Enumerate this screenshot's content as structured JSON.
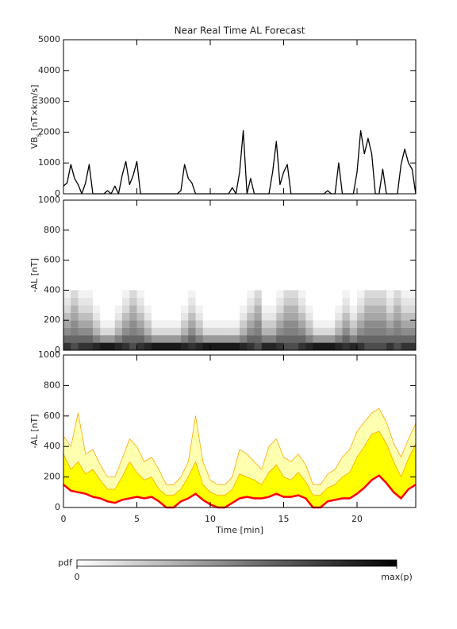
{
  "chart_data": [
    {
      "type": "line",
      "title": "Near Real Time AL Forecast",
      "ylabel": [
        "VB",
        "s",
        " [nT×km/s]"
      ],
      "xlim": [
        0,
        24
      ],
      "xticks": [
        0,
        5,
        10,
        15,
        20
      ],
      "xtick_labels": false,
      "ylim": [
        0,
        5000
      ],
      "yticks": [
        0,
        1000,
        2000,
        3000,
        4000,
        5000
      ],
      "x": [
        0,
        0.25,
        0.5,
        0.75,
        1,
        1.25,
        1.5,
        1.75,
        2,
        2.25,
        2.5,
        2.75,
        3,
        3.25,
        3.5,
        3.75,
        4,
        4.25,
        4.5,
        4.75,
        5,
        5.25,
        5.5,
        5.75,
        6,
        6.25,
        6.5,
        6.75,
        7,
        7.25,
        7.5,
        7.75,
        8,
        8.25,
        8.5,
        8.75,
        9,
        9.25,
        9.5,
        9.75,
        10,
        10.25,
        10.5,
        10.75,
        11,
        11.25,
        11.5,
        11.75,
        12,
        12.25,
        12.5,
        12.75,
        13,
        13.25,
        13.5,
        13.75,
        14,
        14.25,
        14.5,
        14.75,
        15,
        15.25,
        15.5,
        15.75,
        16,
        16.25,
        16.5,
        16.75,
        17,
        17.25,
        17.5,
        17.75,
        18,
        18.25,
        18.5,
        18.75,
        19,
        19.25,
        19.5,
        19.75,
        20,
        20.25,
        20.5,
        20.75,
        21,
        21.25,
        21.5,
        21.75,
        22,
        22.25,
        22.5,
        22.75,
        23,
        23.25,
        23.5,
        23.75,
        24
      ],
      "series": [
        {
          "color": "#000000",
          "values": [
            250,
            350,
            950,
            500,
            300,
            0,
            350,
            950,
            0,
            0,
            0,
            0,
            100,
            0,
            250,
            0,
            600,
            1050,
            300,
            600,
            1050,
            0,
            0,
            0,
            0,
            0,
            0,
            0,
            0,
            0,
            0,
            0,
            100,
            950,
            500,
            350,
            0,
            0,
            0,
            0,
            0,
            0,
            0,
            0,
            0,
            0,
            200,
            0,
            700,
            2050,
            0,
            500,
            0,
            0,
            0,
            0,
            0,
            700,
            1700,
            300,
            700,
            950,
            0,
            0,
            0,
            0,
            0,
            0,
            0,
            0,
            0,
            0,
            100,
            0,
            0,
            1000,
            0,
            0,
            0,
            0,
            700,
            2050,
            1300,
            1800,
            1300,
            0,
            0,
            800,
            0,
            0,
            0,
            0,
            950,
            1450,
            1000,
            800,
            0
          ]
        }
      ]
    },
    {
      "type": "heatmap",
      "ylabel": "-AL [nT]",
      "xlim": [
        0,
        24
      ],
      "xticks": [
        0,
        5,
        10,
        15,
        20
      ],
      "xtick_labels": false,
      "ylim": [
        0,
        1000
      ],
      "yticks": [
        0,
        200,
        400,
        600,
        800,
        1000
      ],
      "x_bins": [
        0,
        0.5,
        1,
        1.5,
        2,
        2.5,
        3,
        3.5,
        4,
        4.5,
        5,
        5.5,
        6,
        6.5,
        7,
        7.5,
        8,
        8.5,
        9,
        9.5,
        10,
        10.5,
        11,
        11.5,
        12,
        12.5,
        13,
        13.5,
        14,
        14.5,
        15,
        15.5,
        16,
        16.5,
        17,
        17.5,
        18,
        18.5,
        19,
        19.5,
        20,
        20.5,
        21,
        21.5,
        22,
        22.5,
        23,
        23.5,
        24
      ],
      "y_bins": [
        0,
        50,
        100,
        150,
        200,
        250,
        300,
        350,
        400
      ],
      "z": [
        [
          0.8,
          0.7,
          0.8,
          0.8,
          0.85,
          0.9,
          0.9,
          0.85,
          0.8,
          0.7,
          0.8,
          0.85,
          0.9,
          0.9,
          0.9,
          0.9,
          0.85,
          0.8,
          0.85,
          0.9,
          0.9,
          0.9,
          0.9,
          0.9,
          0.85,
          0.8,
          0.7,
          0.85,
          0.85,
          0.8,
          0.7,
          0.7,
          0.8,
          0.85,
          0.9,
          0.9,
          0.9,
          0.85,
          0.8,
          0.85,
          0.8,
          0.7,
          0.7,
          0.7,
          0.8,
          0.7,
          0.8,
          0.8
        ],
        [
          0.6,
          0.6,
          0.6,
          0.6,
          0.5,
          0.4,
          0.4,
          0.5,
          0.6,
          0.6,
          0.6,
          0.5,
          0.4,
          0.4,
          0.4,
          0.4,
          0.5,
          0.6,
          0.5,
          0.4,
          0.4,
          0.4,
          0.4,
          0.4,
          0.5,
          0.6,
          0.6,
          0.5,
          0.5,
          0.6,
          0.6,
          0.6,
          0.6,
          0.5,
          0.4,
          0.4,
          0.4,
          0.5,
          0.6,
          0.5,
          0.6,
          0.6,
          0.6,
          0.6,
          0.6,
          0.6,
          0.6,
          0.6
        ],
        [
          0.45,
          0.5,
          0.45,
          0.45,
          0.3,
          0.15,
          0.15,
          0.3,
          0.45,
          0.5,
          0.45,
          0.3,
          0.15,
          0.15,
          0.15,
          0.15,
          0.3,
          0.45,
          0.3,
          0.15,
          0.15,
          0.15,
          0.15,
          0.15,
          0.3,
          0.45,
          0.5,
          0.3,
          0.3,
          0.45,
          0.5,
          0.5,
          0.45,
          0.3,
          0.15,
          0.15,
          0.15,
          0.3,
          0.45,
          0.3,
          0.45,
          0.5,
          0.5,
          0.5,
          0.45,
          0.5,
          0.45,
          0.45
        ],
        [
          0.35,
          0.45,
          0.35,
          0.35,
          0.2,
          0.05,
          0.05,
          0.2,
          0.35,
          0.45,
          0.35,
          0.2,
          0.05,
          0.05,
          0.05,
          0.05,
          0.2,
          0.35,
          0.2,
          0.05,
          0.05,
          0.05,
          0.05,
          0.05,
          0.2,
          0.35,
          0.45,
          0.2,
          0.2,
          0.35,
          0.45,
          0.45,
          0.35,
          0.2,
          0.05,
          0.05,
          0.05,
          0.2,
          0.35,
          0.2,
          0.35,
          0.45,
          0.45,
          0.45,
          0.35,
          0.45,
          0.35,
          0.35
        ],
        [
          0.25,
          0.35,
          0.25,
          0.25,
          0.1,
          0,
          0,
          0.1,
          0.25,
          0.35,
          0.25,
          0.1,
          0,
          0,
          0,
          0,
          0.1,
          0.25,
          0.1,
          0,
          0,
          0,
          0,
          0,
          0.1,
          0.25,
          0.35,
          0.1,
          0.1,
          0.25,
          0.35,
          0.35,
          0.25,
          0.1,
          0,
          0,
          0,
          0.1,
          0.25,
          0.1,
          0.25,
          0.35,
          0.35,
          0.35,
          0.25,
          0.35,
          0.25,
          0.25
        ],
        [
          0.15,
          0.3,
          0.15,
          0.15,
          0.05,
          0,
          0,
          0.05,
          0.15,
          0.3,
          0.15,
          0.05,
          0,
          0,
          0,
          0,
          0.05,
          0.15,
          0.05,
          0,
          0,
          0,
          0,
          0,
          0.05,
          0.15,
          0.3,
          0.05,
          0.05,
          0.15,
          0.3,
          0.3,
          0.15,
          0.05,
          0,
          0,
          0,
          0.05,
          0.15,
          0.05,
          0.15,
          0.3,
          0.3,
          0.3,
          0.15,
          0.3,
          0.15,
          0.15
        ],
        [
          0.1,
          0.2,
          0.1,
          0.1,
          0,
          0,
          0,
          0,
          0.1,
          0.2,
          0.1,
          0,
          0,
          0,
          0,
          0,
          0,
          0.1,
          0,
          0,
          0,
          0,
          0,
          0,
          0,
          0.1,
          0.2,
          0,
          0,
          0.1,
          0.2,
          0.2,
          0.1,
          0,
          0,
          0,
          0,
          0,
          0.1,
          0,
          0.1,
          0.2,
          0.2,
          0.2,
          0.1,
          0.2,
          0.1,
          0.1
        ],
        [
          0.05,
          0.15,
          0.05,
          0.05,
          0,
          0,
          0,
          0,
          0.05,
          0.15,
          0.05,
          0,
          0,
          0,
          0,
          0,
          0,
          0.05,
          0,
          0,
          0,
          0,
          0,
          0,
          0,
          0.05,
          0.15,
          0,
          0,
          0.05,
          0.15,
          0.15,
          0.05,
          0,
          0,
          0,
          0,
          0,
          0.05,
          0,
          0.05,
          0.15,
          0.15,
          0.15,
          0.05,
          0.15,
          0.05,
          0.05
        ]
      ],
      "colorbar": {
        "label": "pdf",
        "clim": [
          0,
          1
        ],
        "ticks": [
          0,
          {
            "value": 1,
            "label": "max(p)"
          }
        ]
      }
    },
    {
      "type": "line",
      "ylabel": "-AL [nT]",
      "xlabel": "Time [min]",
      "xlim": [
        0,
        24
      ],
      "xticks": [
        0,
        5,
        10,
        15,
        20
      ],
      "xtick_labels": true,
      "ylim": [
        0,
        1000
      ],
      "yticks": [
        0,
        200,
        400,
        600,
        800,
        1000
      ],
      "x": [
        0,
        0.5,
        1,
        1.5,
        2,
        2.5,
        3,
        3.5,
        4,
        4.5,
        5,
        5.5,
        6,
        6.5,
        7,
        7.5,
        8,
        8.5,
        9,
        9.5,
        10,
        10.5,
        11,
        11.5,
        12,
        12.5,
        13,
        13.5,
        14,
        14.5,
        15,
        15.5,
        16,
        16.5,
        17,
        17.5,
        18,
        18.5,
        19,
        19.5,
        20,
        20.5,
        21,
        21.5,
        22,
        22.5,
        23,
        23.5,
        24
      ],
      "series": [
        {
          "color": "#ff0000",
          "values": [
            150,
            110,
            100,
            90,
            70,
            60,
            40,
            30,
            50,
            60,
            70,
            60,
            70,
            40,
            0,
            0,
            40,
            60,
            90,
            50,
            20,
            0,
            0,
            30,
            60,
            70,
            60,
            60,
            70,
            90,
            70,
            70,
            80,
            60,
            0,
            0,
            40,
            50,
            60,
            60,
            90,
            130,
            180,
            210,
            160,
            100,
            60,
            120,
            150
          ]
        },
        {
          "color": "#ffa500",
          "fill": "#ffff00",
          "values": [
            350,
            250,
            300,
            220,
            250,
            180,
            120,
            120,
            200,
            300,
            230,
            180,
            200,
            120,
            80,
            80,
            120,
            200,
            300,
            150,
            100,
            80,
            80,
            120,
            220,
            200,
            180,
            150,
            230,
            280,
            200,
            180,
            230,
            170,
            80,
            80,
            130,
            150,
            200,
            230,
            330,
            400,
            480,
            500,
            420,
            300,
            200,
            320,
            420
          ]
        },
        {
          "color": "#ffa500",
          "fill": "#ffffb0",
          "values": [
            470,
            400,
            620,
            350,
            380,
            280,
            200,
            200,
            320,
            450,
            400,
            300,
            330,
            250,
            150,
            150,
            200,
            300,
            600,
            300,
            180,
            150,
            150,
            200,
            380,
            350,
            300,
            250,
            400,
            450,
            330,
            300,
            350,
            280,
            150,
            150,
            220,
            250,
            330,
            380,
            500,
            560,
            620,
            650,
            560,
            420,
            330,
            450,
            550
          ]
        }
      ]
    }
  ]
}
